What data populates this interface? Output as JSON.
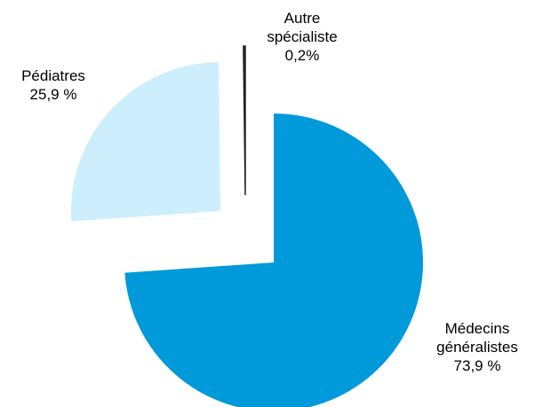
{
  "chart_data": {
    "type": "pie",
    "categories": [
      "Médecins généralistes",
      "Pédiatres",
      "Autre spécialiste"
    ],
    "values": [
      73.9,
      25.9,
      0.2
    ],
    "value_labels": [
      "73,9 %",
      "25,9 %",
      "0,2%"
    ],
    "colors": [
      "#0099da",
      "#cdeefc",
      "#222222"
    ]
  }
}
